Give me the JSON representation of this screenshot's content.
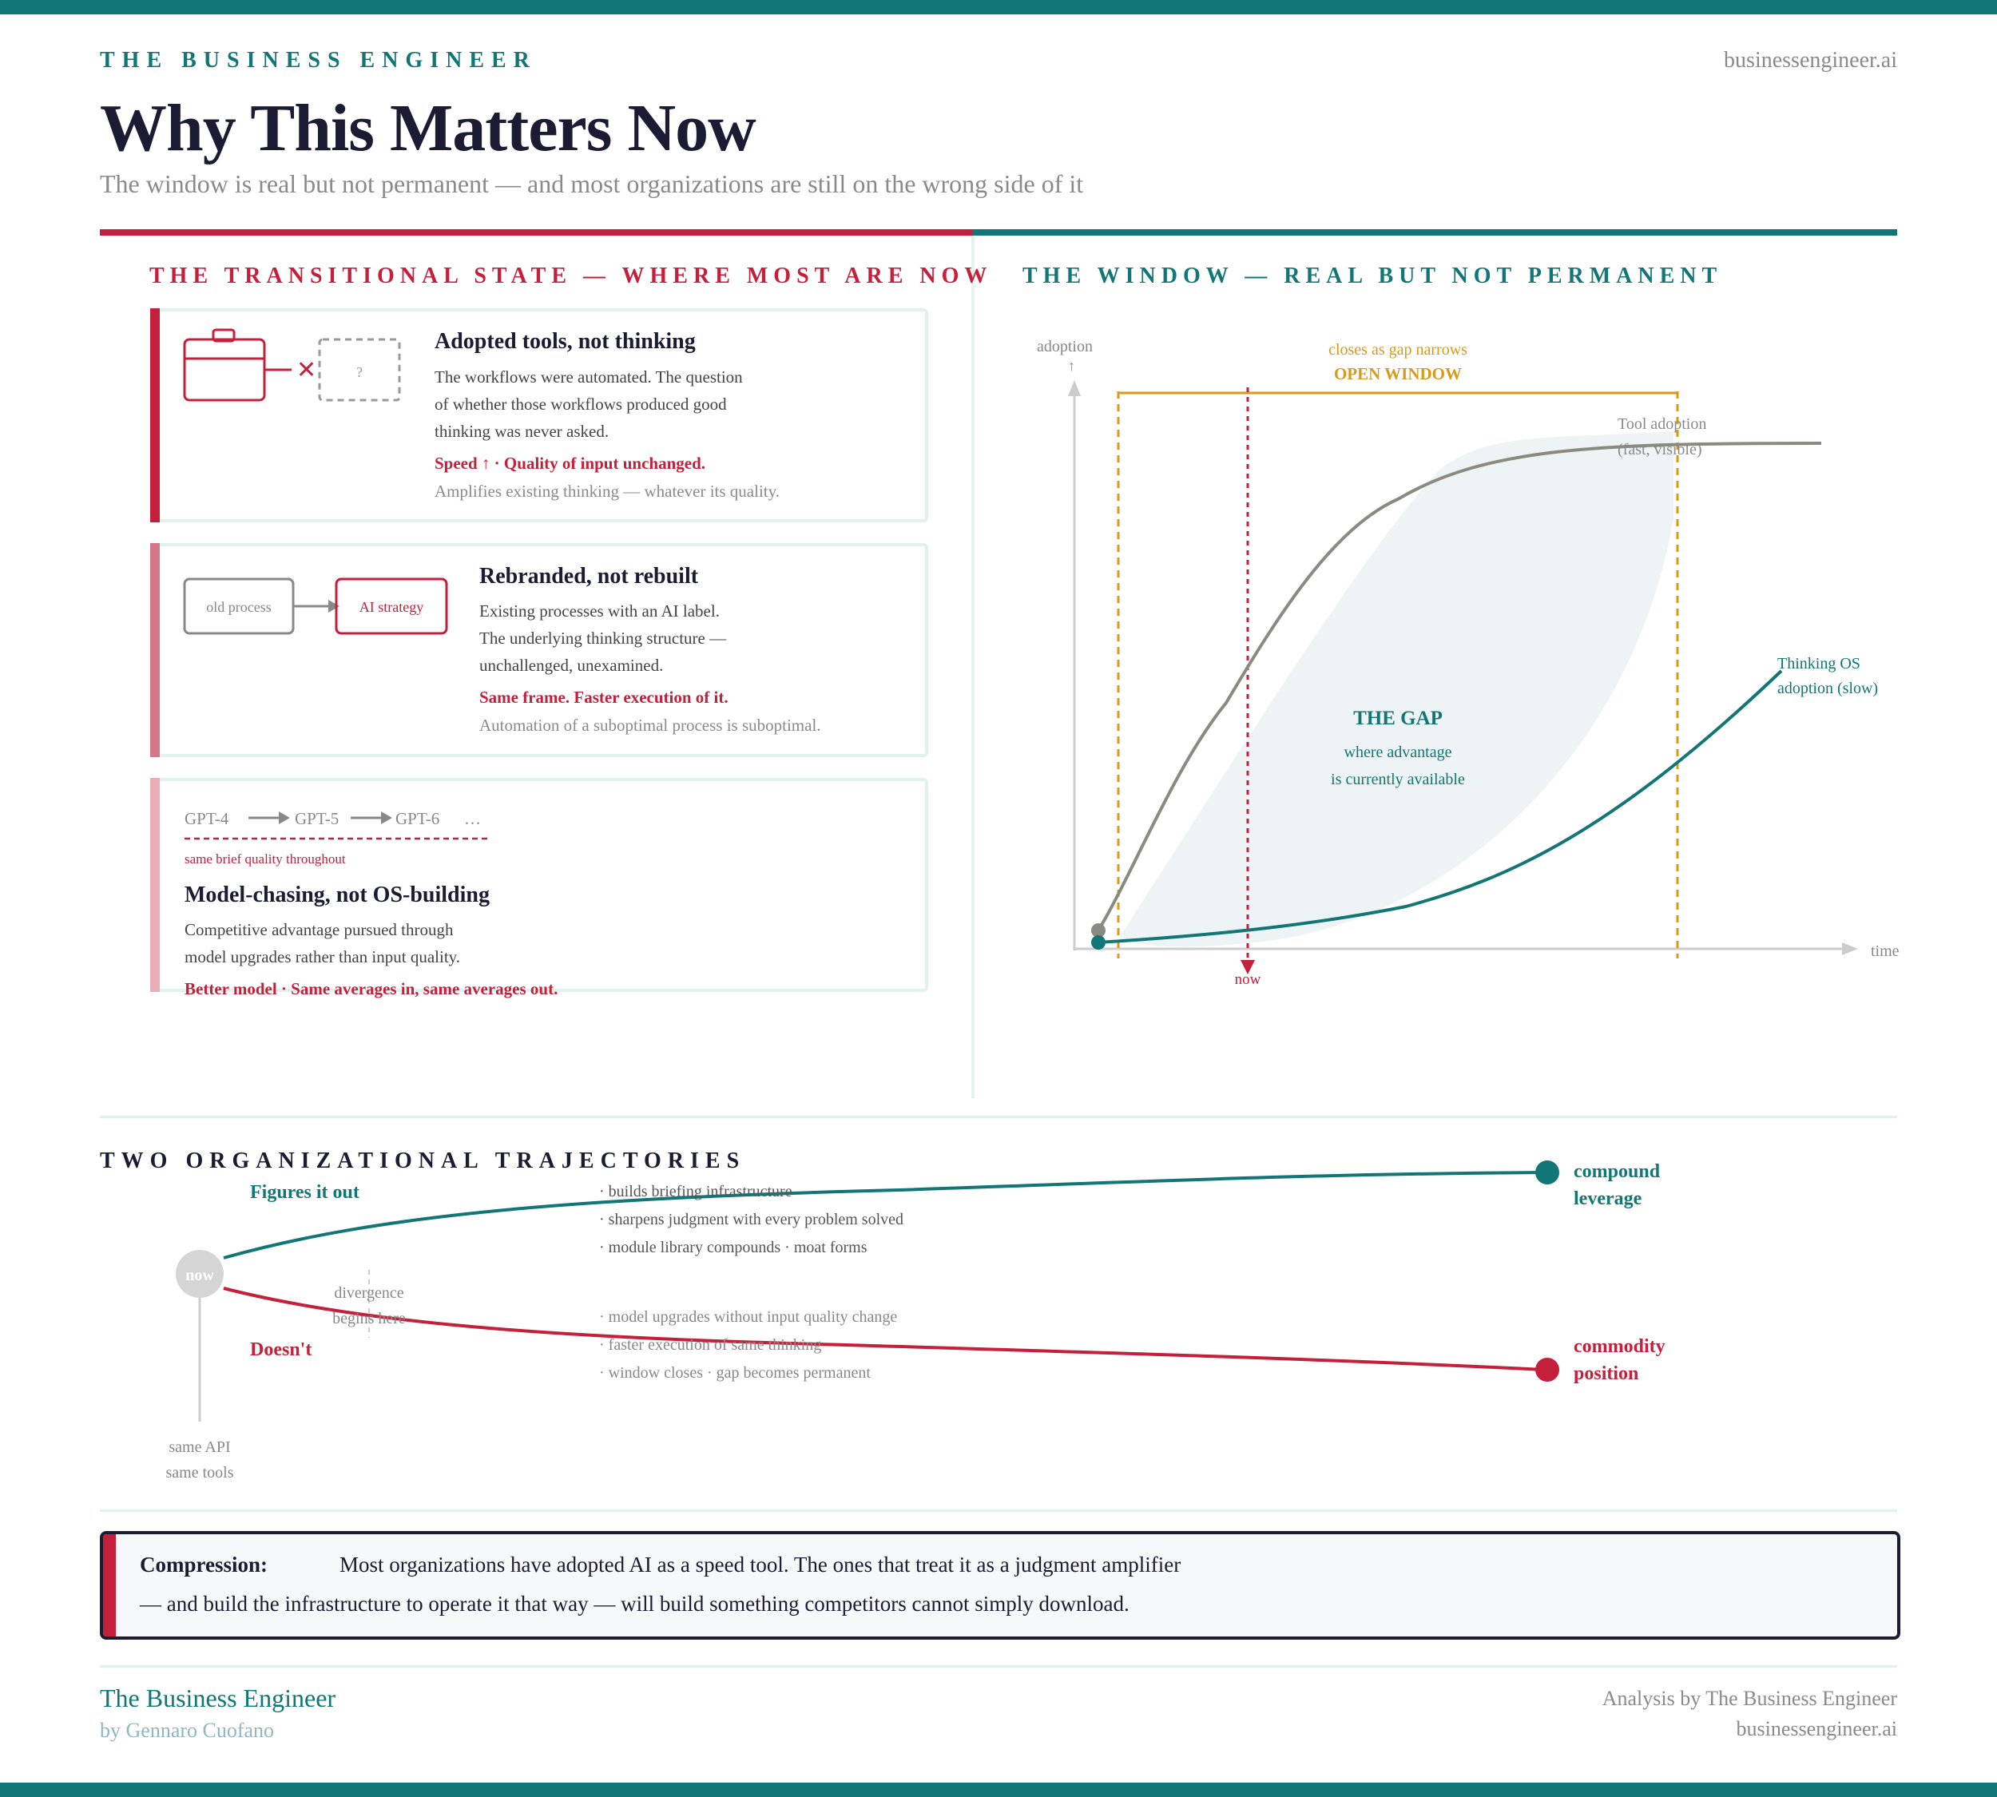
{
  "header": {
    "brand": "THE BUSINESS ENGINEER",
    "site": "businessengineer.ai",
    "title": "Why This Matters Now",
    "subtitle": "The window is real but not permanent — and most organizations are still on the wrong side of it"
  },
  "left": {
    "section_title": "THE TRANSITIONAL STATE — WHERE MOST ARE NOW",
    "cards": [
      {
        "title": "Adopted tools, not thinking",
        "body": [
          "The workflows were automated. The question",
          "of whether those workflows produced good",
          "thinking was never asked."
        ],
        "emphasis": "Speed ↑ · Quality of input unchanged.",
        "note": "Amplifies existing thinking — whatever its quality.",
        "icon_placeholder": "?"
      },
      {
        "title": "Rebranded, not rebuilt",
        "body": [
          "Existing processes with an AI label.",
          "The underlying thinking structure —",
          "unchallenged, unexamined."
        ],
        "emphasis": "Same frame. Faster execution of it.",
        "note": "Automation of a suboptimal process is suboptimal.",
        "box_from": "old process",
        "box_to": "AI strategy"
      },
      {
        "title": "Model-chasing, not OS-building",
        "body": [
          "Competitive advantage pursued through",
          "model upgrades rather than input quality."
        ],
        "emphasis": "Better model · Same averages in, same averages out.",
        "models": [
          "GPT-4",
          "GPT-5",
          "GPT-6",
          "…"
        ],
        "models_note": "same brief quality throughout"
      }
    ]
  },
  "right": {
    "section_title": "THE WINDOW — REAL BUT NOT PERMANENT",
    "y_label": "adoption",
    "x_label": "time",
    "window_note": "closes as gap narrows",
    "window_label": "OPEN WINDOW",
    "now_label": "now",
    "gap_title": "THE GAP",
    "gap_line1": "where advantage",
    "gap_line2": "is currently available",
    "tool_label1": "Tool adoption",
    "tool_label2": "(fast, visible)",
    "os_label1": "Thinking OS",
    "os_label2": "adoption (slow)"
  },
  "chart_data": {
    "type": "line",
    "xlabel": "time",
    "ylabel": "adoption",
    "series": [
      {
        "name": "Tool adoption (fast, visible)",
        "shape": "fast S-curve rising early then plateauing"
      },
      {
        "name": "Thinking OS adoption (slow)",
        "shape": "slow convex curve rising late"
      }
    ],
    "annotations": [
      "OPEN WINDOW",
      "closes as gap narrows",
      "now",
      "THE GAP",
      "where advantage",
      "is currently available"
    ],
    "colors": {
      "tool": "#8a8a80",
      "os": "#127676",
      "window": "#d99a1a",
      "now": "#c41f3b",
      "gap": "#eef4f5"
    }
  },
  "trajectories": {
    "section_title": "TWO ORGANIZATIONAL TRAJECTORIES",
    "start_label": "now",
    "start_note1": "same API",
    "start_note2": "same tools",
    "divergence1": "divergence",
    "divergence2": "begins here",
    "up_label": "Figures it out",
    "up_points": [
      "· builds briefing infrastructure",
      "· sharpens judgment with every problem solved",
      "· module library compounds · moat forms"
    ],
    "up_end1": "compound",
    "up_end2": "leverage",
    "down_label": "Doesn't",
    "down_points": [
      "· model upgrades without input quality change",
      "· faster execution of same thinking",
      "· window closes · gap becomes permanent"
    ],
    "down_end1": "commodity",
    "down_end2": "position"
  },
  "compression": {
    "label": "Compression:",
    "line1": "Most organizations have adopted AI as a speed tool. The ones that treat it as a judgment amplifier",
    "line2": "— and build the infrastructure to operate it that way — will build something competitors cannot simply download."
  },
  "footer": {
    "name": "The Business Engineer",
    "author": "by Gennaro Cuofano",
    "analysis": "Analysis by The Business Engineer",
    "site": "businessengineer.ai"
  },
  "colors": {
    "teal": "#127676",
    "red": "#c41f3b",
    "gold": "#d99a1a",
    "grey": "#8a8a8a",
    "navy": "#1b1c33"
  }
}
